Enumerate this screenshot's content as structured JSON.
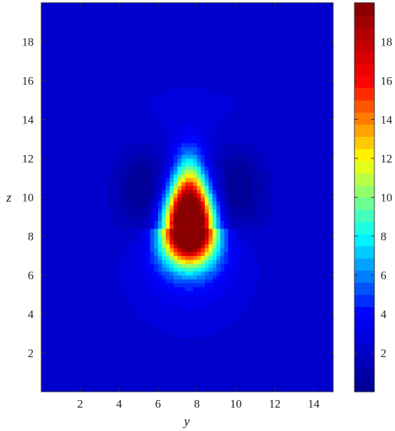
{
  "chart_data": {
    "type": "heatmap",
    "title": "",
    "xlabel": "y",
    "ylabel": "z",
    "xlim": [
      0,
      15
    ],
    "ylim": [
      0,
      20
    ],
    "x_ticks": [
      "2",
      "4",
      "6",
      "8",
      "10",
      "12",
      "14"
    ],
    "y_ticks": [
      "2",
      "4",
      "6",
      "8",
      "10",
      "12",
      "14",
      "16",
      "18"
    ],
    "grid": false,
    "colormap": "jet",
    "colorbar": {
      "position": "right",
      "range": [
        0,
        20
      ],
      "ticks": [
        "2",
        "4",
        "6",
        "8",
        "10",
        "12",
        "14",
        "16",
        "18"
      ]
    },
    "features": [
      {
        "kind": "maximum",
        "y": 7.6,
        "z": 8.5,
        "value": 20
      },
      {
        "kind": "minimum",
        "y": 5.3,
        "z": 10.5,
        "value": 0
      },
      {
        "kind": "minimum",
        "y": 10.0,
        "z": 10.5,
        "value": 0
      }
    ],
    "background_value": 2.2
  },
  "colors": {
    "jet": [
      "#00008f",
      "#0000ff",
      "#00ffff",
      "#ffff00",
      "#ff0000",
      "#800000"
    ],
    "frame": "#333333"
  }
}
